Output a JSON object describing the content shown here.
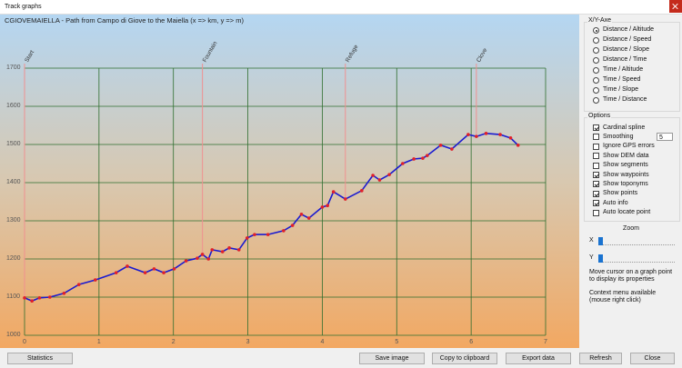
{
  "window": {
    "title": "Track graphs"
  },
  "chart_data": {
    "type": "line",
    "title": "CGIOVEMAIELLA - Path from Campo di Giove to the Maiella (x => km, y => m)",
    "x": [
      0,
      0.1,
      0.2,
      0.34,
      0.53,
      0.73,
      0.95,
      1.23,
      1.38,
      1.62,
      1.74,
      1.87,
      2.01,
      2.17,
      2.32,
      2.39,
      2.47,
      2.52,
      2.66,
      2.75,
      2.88,
      2.99,
      3.09,
      3.27,
      3.48,
      3.6,
      3.72,
      3.82,
      4.0,
      4.07,
      4.15,
      4.31,
      4.53,
      4.68,
      4.77,
      4.9,
      5.08,
      5.23,
      5.35,
      5.41,
      5.59,
      5.74,
      5.96,
      6.07,
      6.2,
      6.39,
      6.53,
      6.63
    ],
    "series": [
      {
        "color": "#1a1ad0",
        "marker_color": "#e0202a",
        "values": [
          1098,
          1090,
          1098,
          1100,
          1110,
          1133,
          1145,
          1164,
          1181,
          1164,
          1174,
          1164,
          1174,
          1195,
          1202,
          1212,
          1200,
          1224,
          1219,
          1229,
          1224,
          1255,
          1264,
          1264,
          1274,
          1288,
          1317,
          1307,
          1336,
          1340,
          1376,
          1357,
          1379,
          1419,
          1407,
          1421,
          1450,
          1462,
          1464,
          1471,
          1498,
          1488,
          1526,
          1521,
          1529,
          1526,
          1517,
          1498
        ]
      }
    ],
    "annotations": [
      {
        "label": "Start",
        "x": 0
      },
      {
        "label": "Fountain",
        "x": 2.39
      },
      {
        "label": "Refuge",
        "x": 4.31
      },
      {
        "label": "Clove",
        "x": 6.07
      }
    ],
    "xlim": [
      0,
      7
    ],
    "xticks": [
      0,
      1,
      2,
      3,
      4,
      5,
      6,
      7
    ],
    "ylim": [
      1000,
      1700
    ],
    "yticks": [
      1000,
      1100,
      1200,
      1300,
      1400,
      1500,
      1600,
      1700
    ],
    "grid": true,
    "grid_color": "#2e6e2e",
    "annotation_color": "#f09090"
  },
  "axis_panel": {
    "title": "X/Y-Axe",
    "selected": 0,
    "options": [
      "Distance / Altitude",
      "Distance / Speed",
      "Distance / Slope",
      "Distance / Time",
      "Time / Altitude",
      "Time / Speed",
      "Time / Slope",
      "Time / Distance"
    ]
  },
  "options_panel": {
    "title": "Options",
    "items": [
      {
        "label": "Cardinal spline",
        "checked": true
      },
      {
        "label": "Smoothing",
        "checked": false,
        "value": 5
      },
      {
        "label": "Ignore GPS errors",
        "checked": false
      },
      {
        "label": "Show DEM data",
        "checked": false
      },
      {
        "label": "Show segments",
        "checked": false
      },
      {
        "label": "Show waypoints",
        "checked": true
      },
      {
        "label": "Show toponyms",
        "checked": true
      },
      {
        "label": "Show points",
        "checked": true
      },
      {
        "label": "Auto info",
        "checked": true
      },
      {
        "label": "Auto locate point",
        "checked": false
      }
    ]
  },
  "zoom": {
    "title": "Zoom",
    "x_label": "X",
    "y_label": "Y"
  },
  "help_texts": [
    "Move cursor on a graph point to display its properties",
    "Context menu available (mouse right click)"
  ],
  "buttons": [
    "Statistics",
    "Save image",
    "Copy to clipboard",
    "Export data",
    "Refresh",
    "Close"
  ]
}
